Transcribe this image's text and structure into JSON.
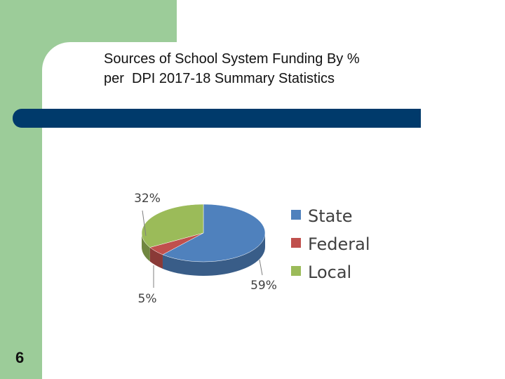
{
  "slide": {
    "title_line1": "Sources of School System Funding By %",
    "title_line2": "per  DPI 2017-18 Summary Statistics",
    "page_number": "6"
  },
  "colors": {
    "accent_bar": "#003a6b",
    "side_green": "#9ccc99"
  },
  "chart_data": {
    "type": "pie",
    "three_d": true,
    "legend_position": "right",
    "title": "",
    "categories": [
      "State",
      "Federal",
      "Local"
    ],
    "values": [
      59,
      5,
      32
    ],
    "value_labels": [
      "59%",
      "5%",
      "32%"
    ],
    "colors": [
      "#4f81bd",
      "#c0504d",
      "#9bbb59"
    ]
  }
}
